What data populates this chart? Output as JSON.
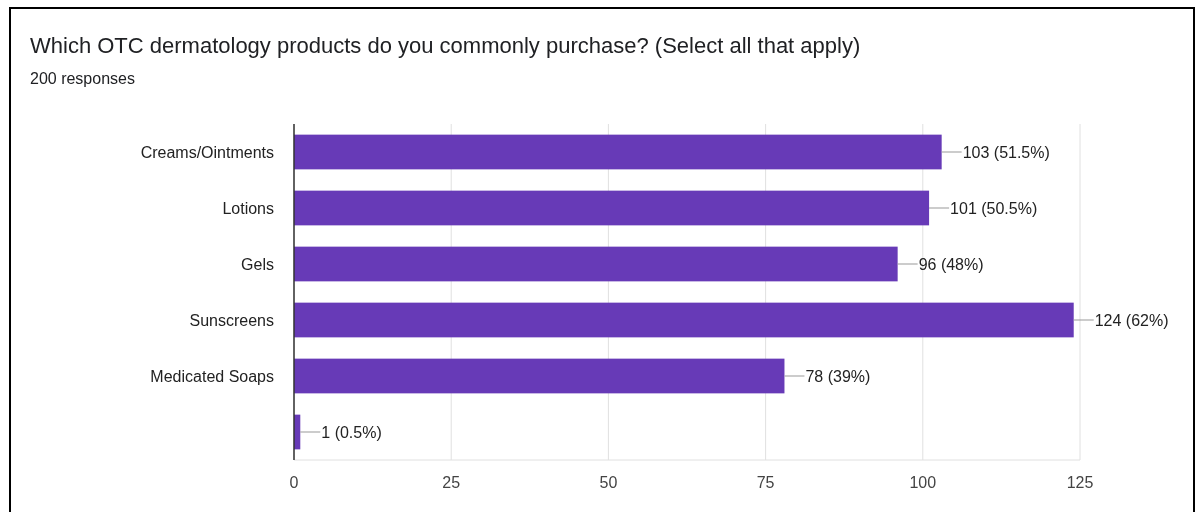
{
  "chart_data": {
    "type": "bar",
    "orientation": "horizontal",
    "title": "Which OTC dermatology products do you commonly purchase? (Select all that apply)",
    "subtitle": "200 responses",
    "categories": [
      "Creams/Ointments",
      "Lotions",
      "Gels",
      "Sunscreens",
      "Medicated Soaps",
      null
    ],
    "values": [
      103,
      101,
      96,
      124,
      78,
      1
    ],
    "value_labels": [
      "103 (51.5%)",
      "101 (50.5%)",
      "96 (48%)",
      "124 (62%)",
      "78 (39%)",
      "1 (0.5%)"
    ],
    "color": "#673ab7",
    "xlim": [
      0,
      125
    ],
    "xticks": [
      0,
      25,
      50,
      75,
      100,
      125
    ],
    "grid": "x"
  }
}
